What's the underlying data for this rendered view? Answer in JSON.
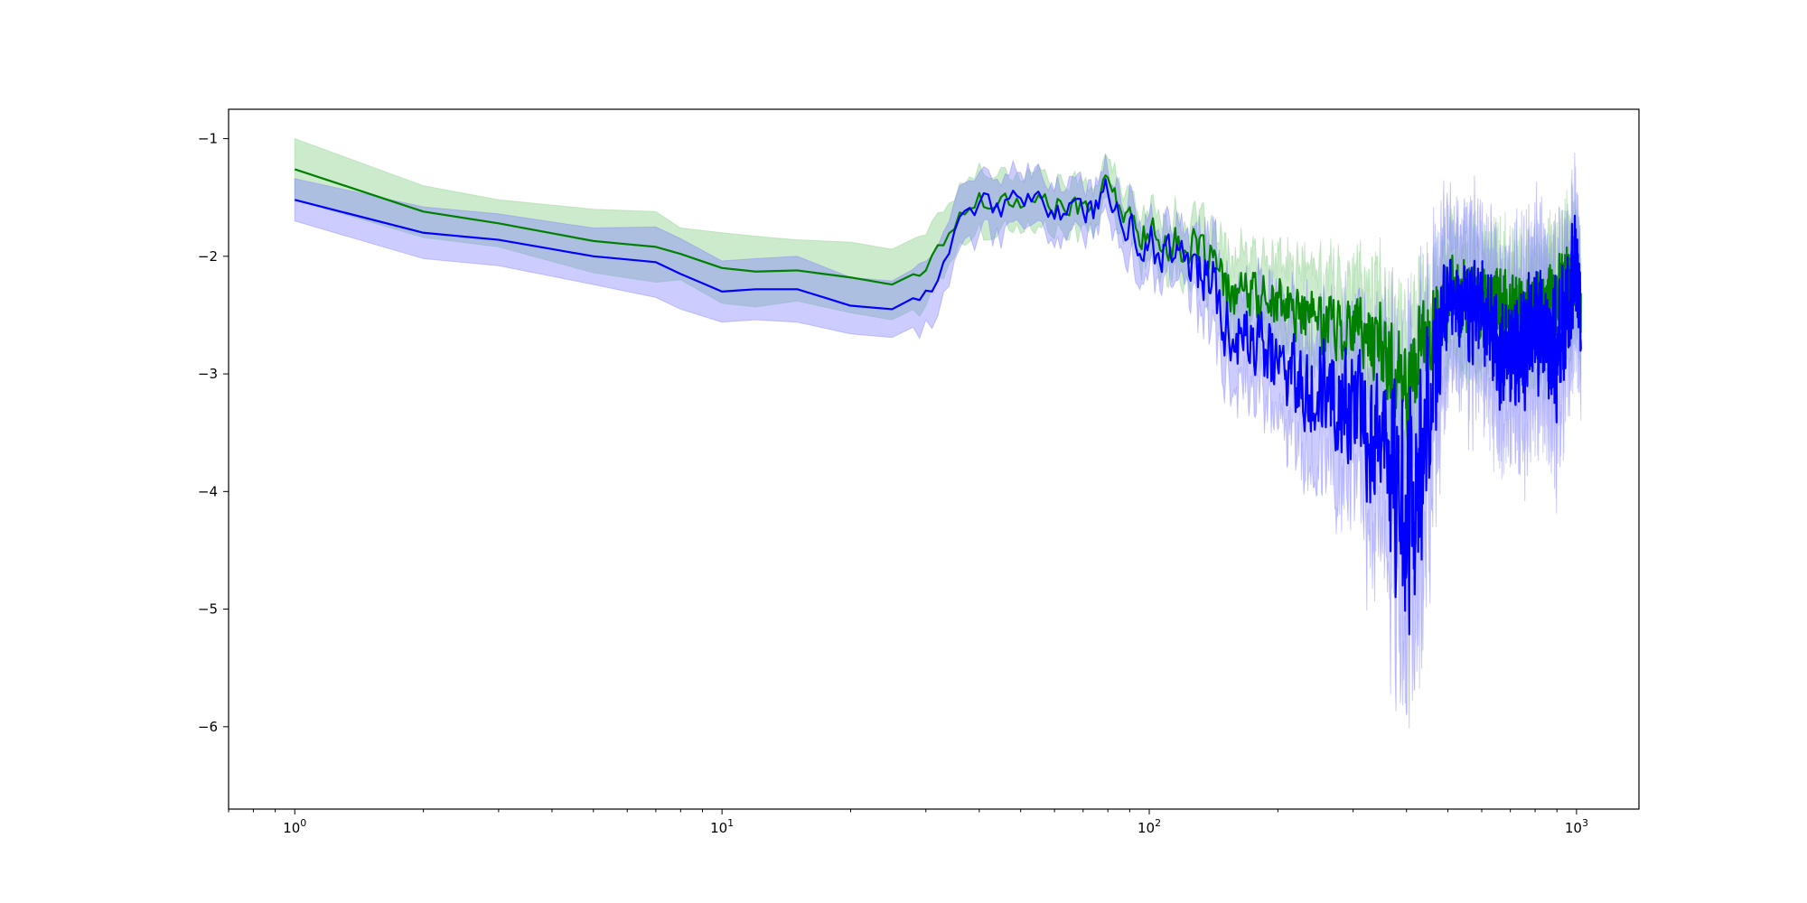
{
  "chart_data": {
    "type": "line",
    "title": "",
    "xlabel": "",
    "ylabel": "",
    "xscale": "log",
    "xlim": [
      0.7,
      1400
    ],
    "ylim": [
      -6.7,
      -0.75
    ],
    "grid": false,
    "legend": "none",
    "x_ticks": [
      {
        "value": 1,
        "base": "10",
        "exp": "0"
      },
      {
        "value": 10,
        "base": "10",
        "exp": "1"
      },
      {
        "value": 100,
        "base": "10",
        "exp": "2"
      },
      {
        "value": 1000,
        "base": "10",
        "exp": "3"
      }
    ],
    "y_ticks": [
      {
        "value": -1,
        "label": "−1"
      },
      {
        "value": -2,
        "label": "−2"
      },
      {
        "value": -3,
        "label": "−3"
      },
      {
        "value": -4,
        "label": "−4"
      },
      {
        "value": -5,
        "label": "−5"
      },
      {
        "value": -6,
        "label": "−6"
      }
    ],
    "series": [
      {
        "color": "#008000",
        "band_color": "#a3d9a3",
        "band_opacity": 0.55,
        "anchors": [
          [
            1,
            -1.26,
            0.26,
            0.12
          ],
          [
            2,
            -1.62,
            0.22,
            0.12
          ],
          [
            3,
            -1.72,
            0.2,
            0.12
          ],
          [
            5,
            -1.87,
            0.27,
            0.12
          ],
          [
            7,
            -1.92,
            0.3,
            0.12
          ],
          [
            8,
            -1.98,
            0.22,
            0.12
          ],
          [
            10,
            -2.1,
            0.3,
            0.12
          ],
          [
            12,
            -2.13,
            0.3,
            0.12
          ],
          [
            15,
            -2.12,
            0.26,
            0.12
          ],
          [
            20,
            -2.18,
            0.3,
            0.12
          ],
          [
            25,
            -2.24,
            0.3,
            0.12
          ],
          [
            30,
            -2.1,
            0.3,
            0.12
          ],
          [
            35,
            -1.72,
            0.24,
            0.12
          ],
          [
            40,
            -1.5,
            0.24,
            0.14
          ],
          [
            45,
            -1.52,
            0.22,
            0.14
          ],
          [
            55,
            -1.52,
            0.22,
            0.14
          ],
          [
            65,
            -1.6,
            0.18,
            0.14
          ],
          [
            75,
            -1.55,
            0.17,
            0.14
          ],
          [
            80,
            -1.38,
            0.16,
            0.14
          ],
          [
            90,
            -1.72,
            0.17,
            0.2
          ],
          [
            100,
            -1.82,
            0.18,
            0.2
          ],
          [
            120,
            -1.92,
            0.2,
            0.22
          ],
          [
            140,
            -2.0,
            0.2,
            0.22
          ],
          [
            150,
            -2.3,
            0.25,
            0.3
          ],
          [
            200,
            -2.4,
            0.3,
            0.32
          ],
          [
            250,
            -2.55,
            0.35,
            0.36
          ],
          [
            300,
            -2.6,
            0.35,
            0.38
          ],
          [
            350,
            -2.75,
            0.4,
            0.48
          ],
          [
            400,
            -3.15,
            0.45,
            0.6
          ],
          [
            430,
            -2.8,
            0.4,
            0.5
          ],
          [
            500,
            -2.35,
            0.35,
            0.42
          ],
          [
            600,
            -2.4,
            0.35,
            0.42
          ],
          [
            700,
            -2.45,
            0.35,
            0.42
          ],
          [
            800,
            -2.45,
            0.35,
            0.42
          ],
          [
            900,
            -2.35,
            0.35,
            0.42
          ],
          [
            1000,
            -2.1,
            0.32,
            0.4
          ],
          [
            1024,
            -2.5,
            0.3,
            0.4
          ]
        ]
      },
      {
        "color": "#0000ff",
        "band_color": "#8080ff",
        "band_opacity": 0.4,
        "anchors": [
          [
            1,
            -1.52,
            0.18,
            0.14
          ],
          [
            2,
            -1.8,
            0.22,
            0.14
          ],
          [
            3,
            -1.86,
            0.22,
            0.14
          ],
          [
            5,
            -2.0,
            0.24,
            0.14
          ],
          [
            7,
            -2.05,
            0.3,
            0.14
          ],
          [
            8,
            -2.15,
            0.3,
            0.14
          ],
          [
            10,
            -2.3,
            0.26,
            0.14
          ],
          [
            12,
            -2.28,
            0.26,
            0.14
          ],
          [
            15,
            -2.28,
            0.28,
            0.14
          ],
          [
            20,
            -2.42,
            0.24,
            0.14
          ],
          [
            25,
            -2.45,
            0.24,
            0.14
          ],
          [
            30,
            -2.3,
            0.25,
            0.16
          ],
          [
            35,
            -1.85,
            0.25,
            0.16
          ],
          [
            40,
            -1.52,
            0.22,
            0.16
          ],
          [
            45,
            -1.57,
            0.2,
            0.16
          ],
          [
            55,
            -1.55,
            0.2,
            0.16
          ],
          [
            65,
            -1.62,
            0.18,
            0.16
          ],
          [
            75,
            -1.6,
            0.18,
            0.16
          ],
          [
            80,
            -1.4,
            0.16,
            0.16
          ],
          [
            90,
            -1.8,
            0.2,
            0.25
          ],
          [
            100,
            -1.9,
            0.2,
            0.25
          ],
          [
            120,
            -2.0,
            0.2,
            0.25
          ],
          [
            140,
            -2.2,
            0.3,
            0.35
          ],
          [
            150,
            -2.6,
            0.3,
            0.35
          ],
          [
            200,
            -2.9,
            0.4,
            0.45
          ],
          [
            250,
            -3.1,
            0.45,
            0.6
          ],
          [
            300,
            -3.3,
            0.5,
            0.7
          ],
          [
            350,
            -3.6,
            0.6,
            0.9
          ],
          [
            400,
            -4.3,
            0.8,
            1.6
          ],
          [
            430,
            -3.8,
            0.8,
            1.3
          ],
          [
            500,
            -2.3,
            0.5,
            0.5
          ],
          [
            600,
            -2.5,
            0.5,
            0.6
          ],
          [
            700,
            -2.9,
            0.5,
            0.7
          ],
          [
            800,
            -2.6,
            0.5,
            0.7
          ],
          [
            900,
            -2.8,
            0.5,
            0.7
          ],
          [
            1000,
            -2.1,
            0.4,
            0.6
          ],
          [
            1024,
            -2.7,
            0.4,
            0.6
          ]
        ]
      }
    ]
  }
}
